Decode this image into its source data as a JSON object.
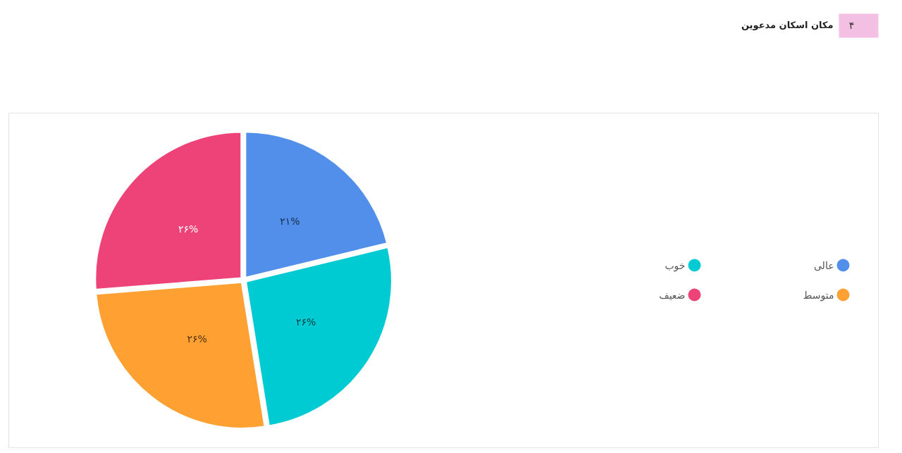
{
  "chart_data": {
    "type": "pie",
    "title": "مکان اسکان مدعوین",
    "annotations": [
      "۴"
    ],
    "categories": [
      "عالی",
      "خوب",
      "متوسط",
      "ضعیف"
    ],
    "values": [
      21,
      26,
      26,
      26
    ],
    "colors": [
      "#518fea",
      "#00cad2",
      "#fea032",
      "#ee4378"
    ],
    "value_labels": [
      "۲۱%",
      "۲۶%",
      "۲۶%",
      "۲۶%"
    ],
    "legend": "right"
  }
}
